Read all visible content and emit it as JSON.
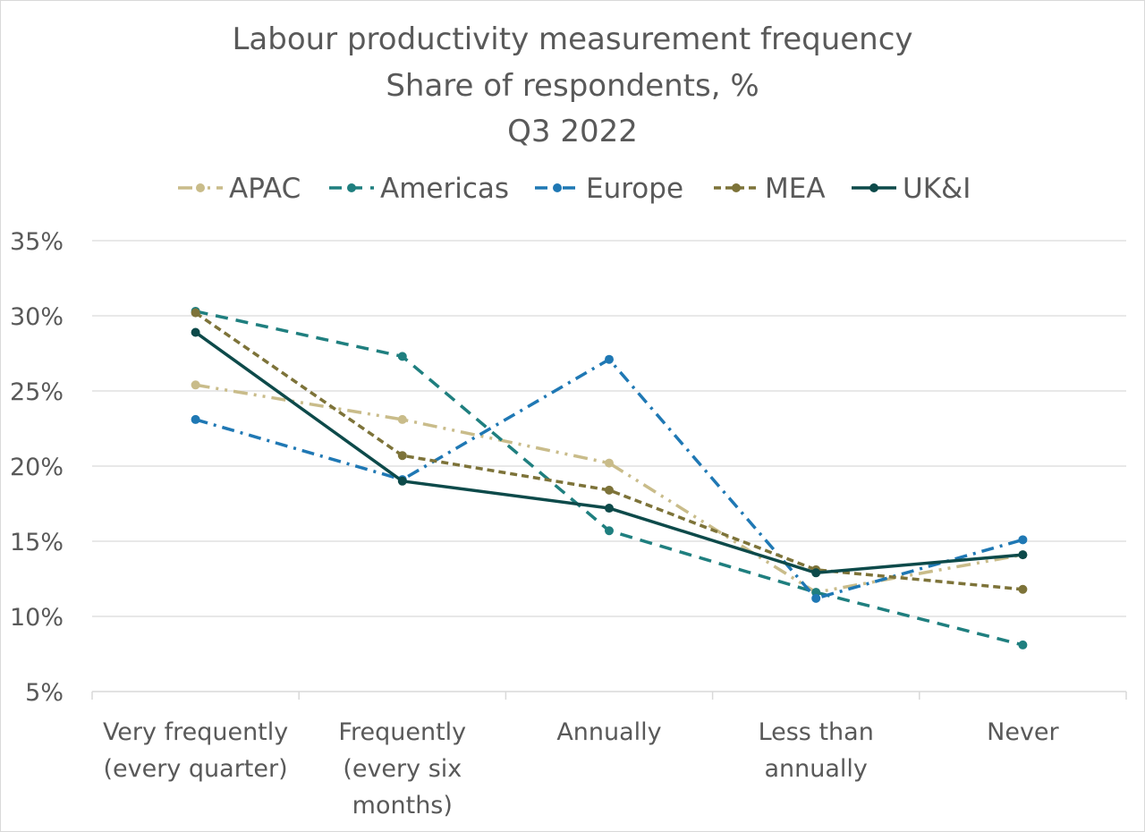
{
  "chart_data": {
    "type": "line",
    "title": [
      "Labour productivity measurement frequency",
      "Share of respondents, %",
      "Q3 2022"
    ],
    "categories": [
      [
        "Very frequently",
        "(every quarter)"
      ],
      [
        "Frequently",
        "(every six",
        "months)"
      ],
      [
        "Annually"
      ],
      [
        "Less than",
        "annually"
      ],
      [
        "Never"
      ]
    ],
    "ylim": [
      5,
      35
    ],
    "yticks": [
      5,
      10,
      15,
      20,
      25,
      30,
      35
    ],
    "ytick_labels": [
      "5%",
      "10%",
      "15%",
      "20%",
      "25%",
      "30%",
      "35%"
    ],
    "grid": "horizontal",
    "legend": "top",
    "series": [
      {
        "name": "APAC",
        "color": "#c9bc8a",
        "dash": "dash-dot-dot",
        "values": [
          25.4,
          23.1,
          20.2,
          11.6,
          14.1
        ]
      },
      {
        "name": "Americas",
        "color": "#1f7f7f",
        "dash": "dash",
        "values": [
          30.3,
          27.3,
          15.7,
          11.6,
          8.1
        ]
      },
      {
        "name": "Europe",
        "color": "#1f78b4",
        "dash": "dash-dot",
        "values": [
          23.1,
          19.1,
          27.1,
          11.2,
          15.1
        ]
      },
      {
        "name": "MEA",
        "color": "#7d7339",
        "dash": "short-dash",
        "values": [
          30.2,
          20.7,
          18.4,
          13.1,
          11.8
        ]
      },
      {
        "name": "UK&I",
        "color": "#0d4a4a",
        "dash": "solid",
        "values": [
          28.9,
          19.0,
          17.2,
          12.9,
          14.1
        ]
      }
    ]
  }
}
